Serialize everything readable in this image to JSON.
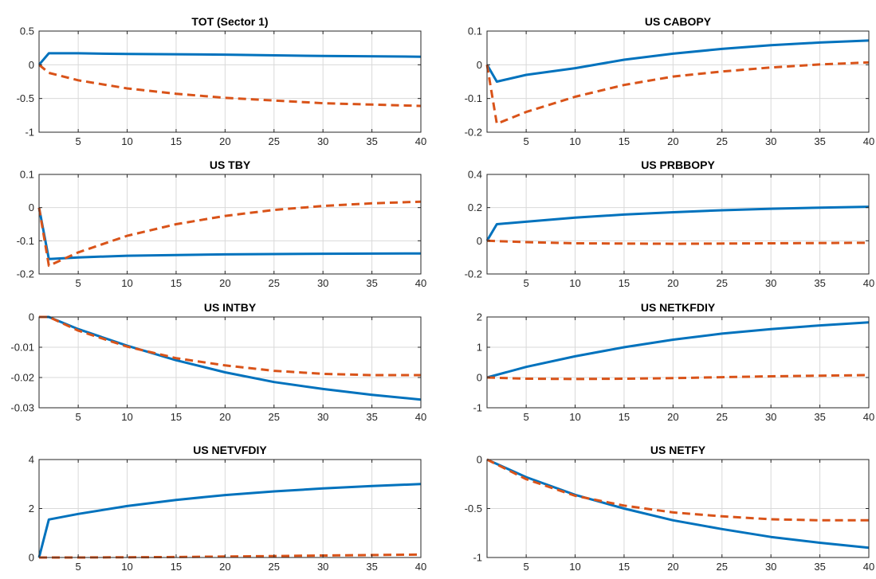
{
  "style": {
    "blue": "#0072BD",
    "orange": "#D95319",
    "grid": true
  },
  "chart_data": [
    {
      "type": "line",
      "title": "TOT (Sector 1)",
      "xlim": [
        1,
        40
      ],
      "ylim": [
        -1,
        0.5
      ],
      "xticks": [
        5,
        10,
        15,
        20,
        25,
        30,
        35,
        40
      ],
      "yticks": [
        0.5,
        0,
        -0.5,
        -1
      ],
      "ytick_labels": [
        "0.5",
        "0",
        "-0.5",
        "-1"
      ],
      "series": [
        {
          "style": "solid",
          "color": "#0072BD",
          "points": [
            [
              1,
              0
            ],
            [
              2,
              0.17
            ],
            [
              5,
              0.17
            ],
            [
              10,
              0.16
            ],
            [
              20,
              0.15
            ],
            [
              30,
              0.13
            ],
            [
              40,
              0.12
            ]
          ]
        },
        {
          "style": "dashed",
          "color": "#D95319",
          "points": [
            [
              1,
              0
            ],
            [
              2,
              -0.12
            ],
            [
              5,
              -0.23
            ],
            [
              10,
              -0.35
            ],
            [
              15,
              -0.43
            ],
            [
              20,
              -0.49
            ],
            [
              25,
              -0.53
            ],
            [
              30,
              -0.57
            ],
            [
              35,
              -0.59
            ],
            [
              40,
              -0.61
            ]
          ]
        }
      ]
    },
    {
      "type": "line",
      "title": "US CABOPY",
      "xlim": [
        1,
        40
      ],
      "ylim": [
        -0.2,
        0.1
      ],
      "xticks": [
        5,
        10,
        15,
        20,
        25,
        30,
        35,
        40
      ],
      "yticks": [
        0.1,
        0,
        -0.1,
        -0.2
      ],
      "ytick_labels": [
        "0.1",
        "0",
        "-0.1",
        "-0.2"
      ],
      "series": [
        {
          "style": "solid",
          "color": "#0072BD",
          "points": [
            [
              1,
              0
            ],
            [
              2,
              -0.05
            ],
            [
              5,
              -0.03
            ],
            [
              10,
              -0.01
            ],
            [
              15,
              0.015
            ],
            [
              20,
              0.033
            ],
            [
              25,
              0.047
            ],
            [
              30,
              0.058
            ],
            [
              35,
              0.066
            ],
            [
              40,
              0.072
            ]
          ]
        },
        {
          "style": "dashed",
          "color": "#D95319",
          "points": [
            [
              1,
              0
            ],
            [
              2,
              -0.175
            ],
            [
              5,
              -0.14
            ],
            [
              10,
              -0.095
            ],
            [
              15,
              -0.06
            ],
            [
              20,
              -0.035
            ],
            [
              25,
              -0.02
            ],
            [
              30,
              -0.008
            ],
            [
              35,
              0.001
            ],
            [
              40,
              0.007
            ]
          ]
        }
      ]
    },
    {
      "type": "line",
      "title": "US TBY",
      "xlim": [
        1,
        40
      ],
      "ylim": [
        -0.2,
        0.1
      ],
      "xticks": [
        5,
        10,
        15,
        20,
        25,
        30,
        35,
        40
      ],
      "yticks": [
        0.1,
        0,
        -0.1,
        -0.2
      ],
      "ytick_labels": [
        "0.1",
        "0",
        "-0.1",
        "-0.2"
      ],
      "series": [
        {
          "style": "solid",
          "color": "#0072BD",
          "points": [
            [
              1,
              0
            ],
            [
              2,
              -0.155
            ],
            [
              5,
              -0.15
            ],
            [
              10,
              -0.145
            ],
            [
              20,
              -0.141
            ],
            [
              30,
              -0.139
            ],
            [
              40,
              -0.138
            ]
          ]
        },
        {
          "style": "dashed",
          "color": "#D95319",
          "points": [
            [
              1,
              0
            ],
            [
              2,
              -0.175
            ],
            [
              5,
              -0.135
            ],
            [
              10,
              -0.085
            ],
            [
              15,
              -0.05
            ],
            [
              20,
              -0.025
            ],
            [
              25,
              -0.007
            ],
            [
              30,
              0.005
            ],
            [
              35,
              0.013
            ],
            [
              40,
              0.018
            ]
          ]
        }
      ]
    },
    {
      "type": "line",
      "title": "US PRBBOPY",
      "xlim": [
        1,
        40
      ],
      "ylim": [
        -0.2,
        0.4
      ],
      "xticks": [
        5,
        10,
        15,
        20,
        25,
        30,
        35,
        40
      ],
      "yticks": [
        0.4,
        0.2,
        0,
        -0.2
      ],
      "ytick_labels": [
        "0.4",
        "0.2",
        "0",
        "-0.2"
      ],
      "series": [
        {
          "style": "solid",
          "color": "#0072BD",
          "points": [
            [
              1,
              0
            ],
            [
              2,
              0.1
            ],
            [
              5,
              0.115
            ],
            [
              10,
              0.14
            ],
            [
              15,
              0.158
            ],
            [
              20,
              0.172
            ],
            [
              25,
              0.184
            ],
            [
              30,
              0.193
            ],
            [
              35,
              0.2
            ],
            [
              40,
              0.205
            ]
          ]
        },
        {
          "style": "dashed",
          "color": "#D95319",
          "points": [
            [
              1,
              0
            ],
            [
              5,
              -0.008
            ],
            [
              10,
              -0.015
            ],
            [
              20,
              -0.018
            ],
            [
              30,
              -0.015
            ],
            [
              40,
              -0.012
            ]
          ]
        }
      ]
    },
    {
      "type": "line",
      "title": "US INTBY",
      "xlim": [
        1,
        40
      ],
      "ylim": [
        -0.03,
        0
      ],
      "xticks": [
        5,
        10,
        15,
        20,
        25,
        30,
        35,
        40
      ],
      "yticks": [
        0,
        -0.01,
        -0.02,
        -0.03
      ],
      "ytick_labels": [
        "0",
        "-0.01",
        "-0.02",
        "-0.03"
      ],
      "series": [
        {
          "style": "solid",
          "color": "#0072BD",
          "points": [
            [
              1,
              0
            ],
            [
              2,
              0
            ],
            [
              5,
              -0.004
            ],
            [
              10,
              -0.0095
            ],
            [
              15,
              -0.0143
            ],
            [
              20,
              -0.0183
            ],
            [
              25,
              -0.0215
            ],
            [
              30,
              -0.0238
            ],
            [
              35,
              -0.0257
            ],
            [
              40,
              -0.0273
            ]
          ]
        },
        {
          "style": "dashed",
          "color": "#D95319",
          "points": [
            [
              1,
              0
            ],
            [
              2,
              0
            ],
            [
              5,
              -0.0045
            ],
            [
              10,
              -0.0098
            ],
            [
              15,
              -0.0136
            ],
            [
              20,
              -0.016
            ],
            [
              25,
              -0.0178
            ],
            [
              30,
              -0.0188
            ],
            [
              35,
              -0.0192
            ],
            [
              40,
              -0.0192
            ]
          ]
        }
      ]
    },
    {
      "type": "line",
      "title": "US NETKFDIY",
      "xlim": [
        1,
        40
      ],
      "ylim": [
        -1,
        2
      ],
      "xticks": [
        5,
        10,
        15,
        20,
        25,
        30,
        35,
        40
      ],
      "yticks": [
        2,
        1,
        0,
        -1
      ],
      "ytick_labels": [
        "2",
        "1",
        "0",
        "-1"
      ],
      "series": [
        {
          "style": "solid",
          "color": "#0072BD",
          "points": [
            [
              1,
              0
            ],
            [
              5,
              0.35
            ],
            [
              10,
              0.7
            ],
            [
              15,
              1.0
            ],
            [
              20,
              1.25
            ],
            [
              25,
              1.45
            ],
            [
              30,
              1.6
            ],
            [
              35,
              1.72
            ],
            [
              40,
              1.82
            ]
          ]
        },
        {
          "style": "dashed",
          "color": "#D95319",
          "points": [
            [
              1,
              0
            ],
            [
              5,
              -0.04
            ],
            [
              10,
              -0.05
            ],
            [
              15,
              -0.04
            ],
            [
              20,
              -0.02
            ],
            [
              25,
              0.01
            ],
            [
              30,
              0.04
            ],
            [
              35,
              0.06
            ],
            [
              40,
              0.08
            ]
          ]
        }
      ]
    },
    {
      "type": "line",
      "title": "US NETVFDIY",
      "xlim": [
        1,
        40
      ],
      "ylim": [
        0,
        4
      ],
      "xticks": [
        5,
        10,
        15,
        20,
        25,
        30,
        35,
        40
      ],
      "yticks": [
        4,
        2,
        0
      ],
      "ytick_labels": [
        "4",
        "2",
        "0"
      ],
      "series": [
        {
          "style": "solid",
          "color": "#0072BD",
          "points": [
            [
              1,
              0
            ],
            [
              2,
              1.55
            ],
            [
              5,
              1.78
            ],
            [
              10,
              2.1
            ],
            [
              15,
              2.35
            ],
            [
              20,
              2.55
            ],
            [
              25,
              2.7
            ],
            [
              30,
              2.82
            ],
            [
              35,
              2.92
            ],
            [
              40,
              3.0
            ]
          ]
        },
        {
          "style": "dashed",
          "color": "#D95319",
          "points": [
            [
              1,
              0
            ],
            [
              5,
              0.0
            ],
            [
              10,
              0.01
            ],
            [
              15,
              0.02
            ],
            [
              20,
              0.04
            ],
            [
              25,
              0.06
            ],
            [
              30,
              0.08
            ],
            [
              35,
              0.1
            ],
            [
              40,
              0.12
            ]
          ]
        }
      ]
    },
    {
      "type": "line",
      "title": "US NETFY",
      "xlim": [
        1,
        40
      ],
      "ylim": [
        -1,
        0
      ],
      "xticks": [
        5,
        10,
        15,
        20,
        25,
        30,
        35,
        40
      ],
      "yticks": [
        0,
        -0.5,
        -1
      ],
      "ytick_labels": [
        "0",
        "-0.5",
        "-1"
      ],
      "series": [
        {
          "style": "solid",
          "color": "#0072BD",
          "points": [
            [
              1,
              0
            ],
            [
              5,
              -0.18
            ],
            [
              10,
              -0.36
            ],
            [
              15,
              -0.5
            ],
            [
              20,
              -0.62
            ],
            [
              25,
              -0.71
            ],
            [
              30,
              -0.79
            ],
            [
              35,
              -0.85
            ],
            [
              40,
              -0.9
            ]
          ]
        },
        {
          "style": "dashed",
          "color": "#D95319",
          "points": [
            [
              1,
              0
            ],
            [
              5,
              -0.2
            ],
            [
              10,
              -0.37
            ],
            [
              15,
              -0.47
            ],
            [
              20,
              -0.54
            ],
            [
              25,
              -0.58
            ],
            [
              30,
              -0.61
            ],
            [
              35,
              -0.62
            ],
            [
              40,
              -0.62
            ]
          ]
        }
      ]
    }
  ]
}
